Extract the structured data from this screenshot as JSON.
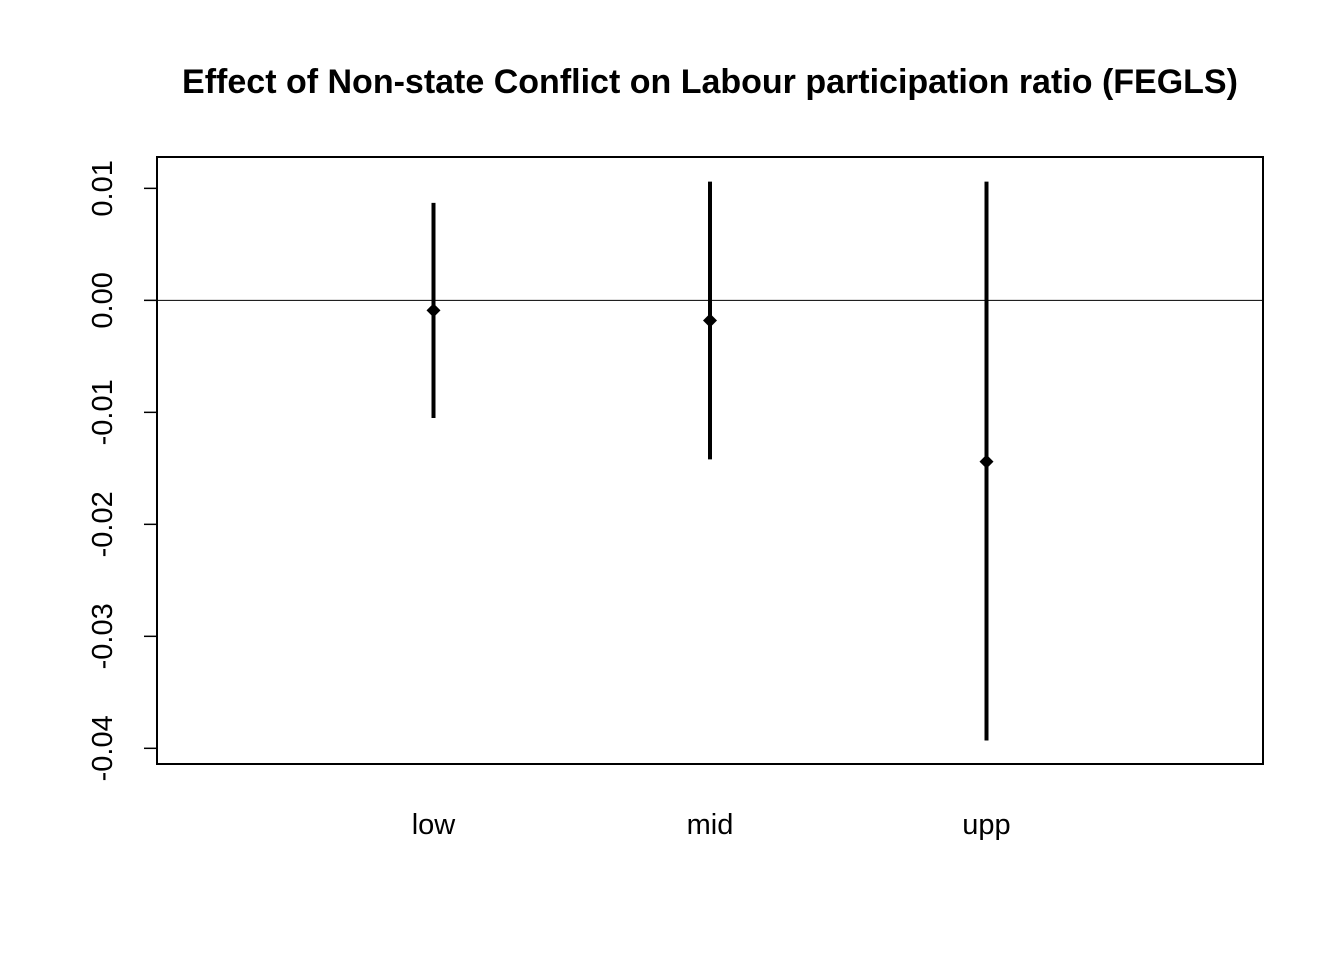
{
  "chart_data": {
    "type": "errorbar",
    "title": "Effect of Non-state Conflict on Labour participation ratio (FEGLS)",
    "xlabel": "",
    "ylabel": "",
    "categories": [
      "low",
      "mid",
      "upp"
    ],
    "estimates": [
      -0.0009,
      -0.0018,
      -0.0144
    ],
    "lower": [
      -0.0105,
      -0.0142,
      -0.0393
    ],
    "upper": [
      0.0087,
      0.0106,
      0.0106
    ],
    "ylim": [
      -0.0414,
      0.0128
    ],
    "yticks": [
      0.01,
      0.0,
      -0.01,
      -0.02,
      -0.03,
      -0.04
    ],
    "ytick_labels": [
      "0.01",
      "0.00",
      "-0.01",
      "-0.02",
      "-0.03",
      "-0.04"
    ],
    "reference_line": 0,
    "grid": false,
    "legend": "none",
    "colors": {
      "line": "#000000",
      "reference": "#000000"
    }
  }
}
